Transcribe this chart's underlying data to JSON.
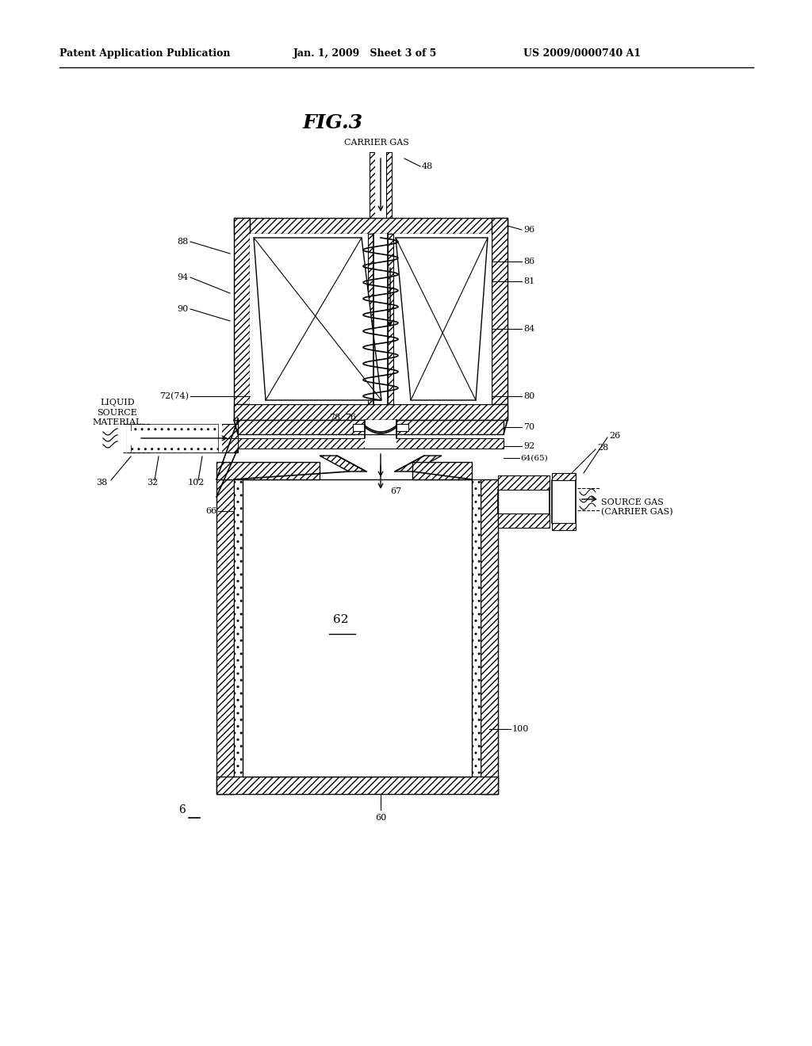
{
  "bg_color": "#ffffff",
  "header_left": "Patent Application Publication",
  "header_mid": "Jan. 1, 2009   Sheet 3 of 5",
  "header_right": "US 2009/0000740 A1",
  "fig_title": "FIG.3"
}
